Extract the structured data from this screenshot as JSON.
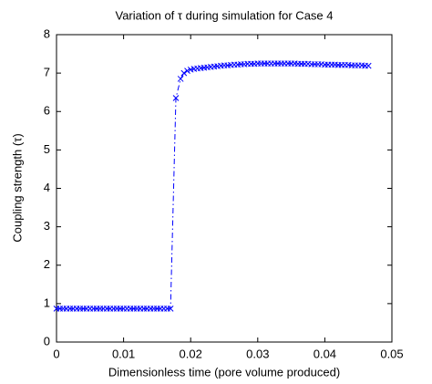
{
  "chart_data": {
    "type": "line",
    "title": "Variation of τ during simulation for Case 4",
    "x_label": "Dimensionless time (pore volume produced)",
    "y_label": "Coupling strength (τ)",
    "x": [
      0,
      0.0005,
      0.001,
      0.0015,
      0.002,
      0.0025,
      0.003,
      0.0035,
      0.004,
      0.0045,
      0.005,
      0.0055,
      0.006,
      0.0065,
      0.007,
      0.0075,
      0.008,
      0.0085,
      0.009,
      0.0095,
      0.01,
      0.0105,
      0.011,
      0.0115,
      0.012,
      0.0125,
      0.013,
      0.0135,
      0.014,
      0.0145,
      0.015,
      0.0155,
      0.016,
      0.0165,
      0.017,
      0.0178,
      0.0185,
      0.019,
      0.0195,
      0.02,
      0.0205,
      0.021,
      0.0215,
      0.022,
      0.0225,
      0.023,
      0.0235,
      0.024,
      0.0245,
      0.025,
      0.0255,
      0.026,
      0.0265,
      0.027,
      0.0275,
      0.028,
      0.0285,
      0.029,
      0.0295,
      0.03,
      0.0305,
      0.031,
      0.0315,
      0.032,
      0.0325,
      0.033,
      0.0335,
      0.034,
      0.0345,
      0.035,
      0.0355,
      0.036,
      0.0365,
      0.037,
      0.0375,
      0.038,
      0.0385,
      0.039,
      0.0395,
      0.04,
      0.0405,
      0.041,
      0.0415,
      0.042,
      0.0425,
      0.043,
      0.0435,
      0.044,
      0.0445,
      0.045,
      0.0455,
      0.046,
      0.0465
    ],
    "values": [
      0.87,
      0.87,
      0.87,
      0.87,
      0.87,
      0.87,
      0.87,
      0.87,
      0.87,
      0.87,
      0.87,
      0.87,
      0.87,
      0.87,
      0.87,
      0.87,
      0.87,
      0.87,
      0.87,
      0.87,
      0.87,
      0.87,
      0.87,
      0.87,
      0.87,
      0.87,
      0.87,
      0.87,
      0.87,
      0.87,
      0.87,
      0.87,
      0.87,
      0.87,
      0.87,
      6.35,
      6.85,
      7.0,
      7.06,
      7.09,
      7.11,
      7.12,
      7.13,
      7.14,
      7.15,
      7.16,
      7.17,
      7.18,
      7.19,
      7.2,
      7.2,
      7.21,
      7.22,
      7.22,
      7.23,
      7.23,
      7.24,
      7.24,
      7.24,
      7.25,
      7.25,
      7.25,
      7.25,
      7.25,
      7.25,
      7.25,
      7.25,
      7.25,
      7.25,
      7.25,
      7.25,
      7.24,
      7.24,
      7.24,
      7.24,
      7.23,
      7.23,
      7.23,
      7.23,
      7.22,
      7.22,
      7.22,
      7.22,
      7.21,
      7.21,
      7.21,
      7.21,
      7.2,
      7.2,
      7.2,
      7.2,
      7.19,
      7.19
    ],
    "color": "#0000ff",
    "line_style": "dash-dot",
    "marker": "x",
    "xlim": [
      0,
      0.05
    ],
    "xticks": [
      0,
      0.01,
      0.02,
      0.03,
      0.04,
      0.05
    ],
    "ylim": [
      0,
      8
    ],
    "yticks": [
      0,
      1,
      2,
      3,
      4,
      5,
      6,
      7,
      8
    ],
    "grid": false
  }
}
